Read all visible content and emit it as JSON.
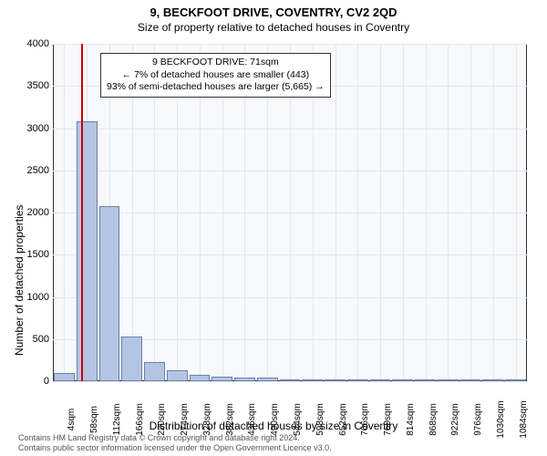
{
  "title": {
    "main": "9, BECKFOOT DRIVE, COVENTRY, CV2 2QD",
    "sub": "Size of property relative to detached houses in Coventry"
  },
  "chart": {
    "type": "histogram",
    "background_color": "#f8f9fb",
    "grid_color": "#e4e7ef",
    "border_color": "#333333",
    "bar_fill": "#b4c5e4",
    "bar_border": "#6b7fa8",
    "marker_color": "#cc0000",
    "ylabel": "Number of detached properties",
    "xlabel": "Distribution of detached houses by size in Coventry",
    "ylim": [
      0,
      4000
    ],
    "yticks": [
      0,
      500,
      1000,
      1500,
      2000,
      2500,
      3000,
      3500,
      4000
    ],
    "xticks": [
      "4sqm",
      "58sqm",
      "112sqm",
      "166sqm",
      "220sqm",
      "274sqm",
      "328sqm",
      "382sqm",
      "436sqm",
      "490sqm",
      "544sqm",
      "598sqm",
      "652sqm",
      "706sqm",
      "760sqm",
      "814sqm",
      "868sqm",
      "922sqm",
      "976sqm",
      "1030sqm",
      "1084sqm"
    ],
    "values": [
      100,
      3080,
      2080,
      530,
      230,
      130,
      80,
      50,
      40,
      40,
      25,
      20,
      10,
      10,
      10,
      5,
      5,
      5,
      5,
      5,
      5
    ],
    "marker_index": 1.24,
    "label_fontsize": 12,
    "tick_fontsize": 11
  },
  "annotation": {
    "line1": "9 BECKFOOT DRIVE: 71sqm",
    "line2": "← 7% of detached houses are smaller (443)",
    "line3": "93% of semi-detached houses are larger (5,665) →"
  },
  "footer": {
    "line1": "Contains HM Land Registry data © Crown copyright and database right 2024.",
    "line2": "Contains public sector information licensed under the Open Government Licence v3.0."
  }
}
